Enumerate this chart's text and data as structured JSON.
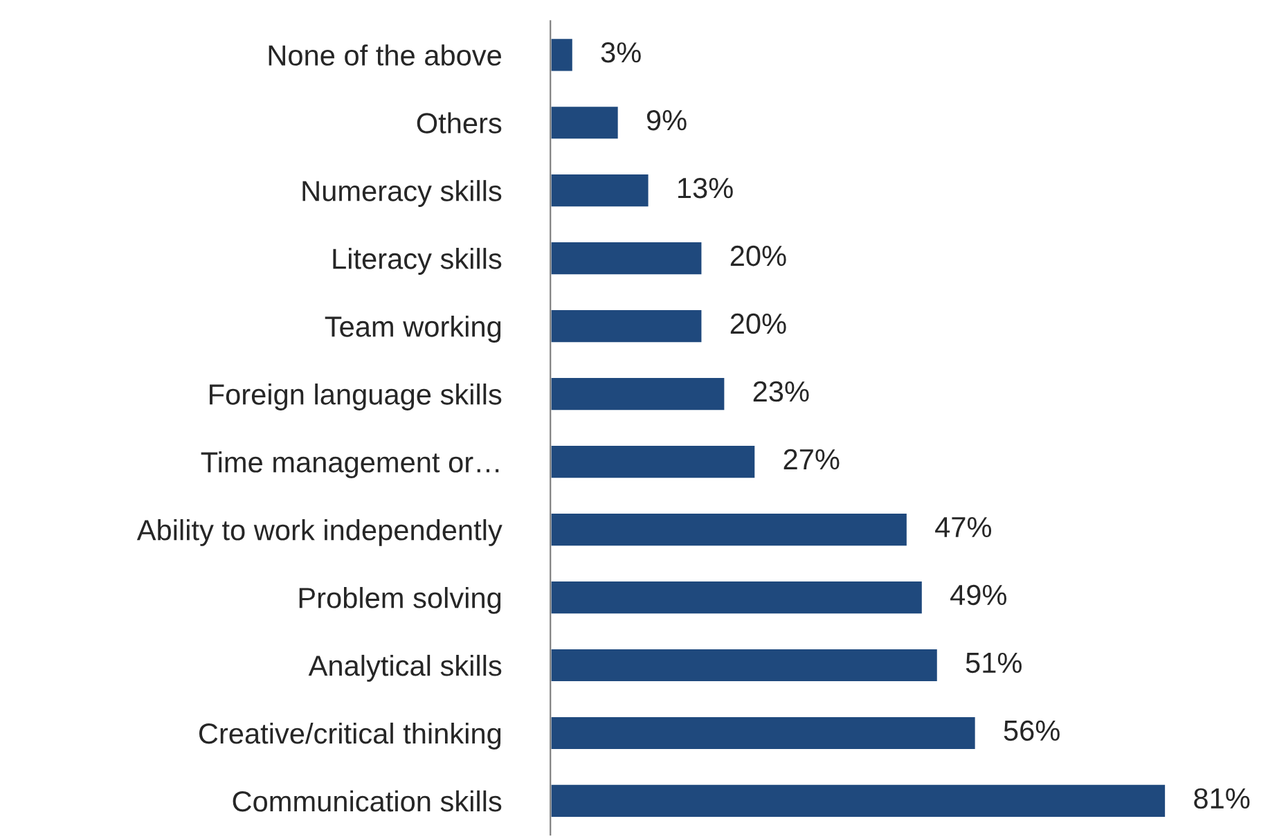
{
  "chart_data": {
    "type": "bar",
    "orientation": "horizontal",
    "categories": [
      "None of the above",
      "Others",
      "Numeracy skills",
      "Literacy skills",
      "Team working",
      "Foreign language skills",
      "Time management or…",
      "Ability to work independently",
      "Problem solving",
      "Analytical skills",
      "Creative/critical thinking",
      "Communication skills"
    ],
    "values": [
      3,
      9,
      13,
      20,
      20,
      23,
      27,
      47,
      49,
      51,
      56,
      81
    ],
    "value_labels": [
      "3%",
      "9%",
      "13%",
      "20%",
      "20%",
      "23%",
      "27%",
      "47%",
      "49%",
      "51%",
      "56%",
      "81%"
    ],
    "color": "#1f497d",
    "grid": false,
    "legend": false
  }
}
